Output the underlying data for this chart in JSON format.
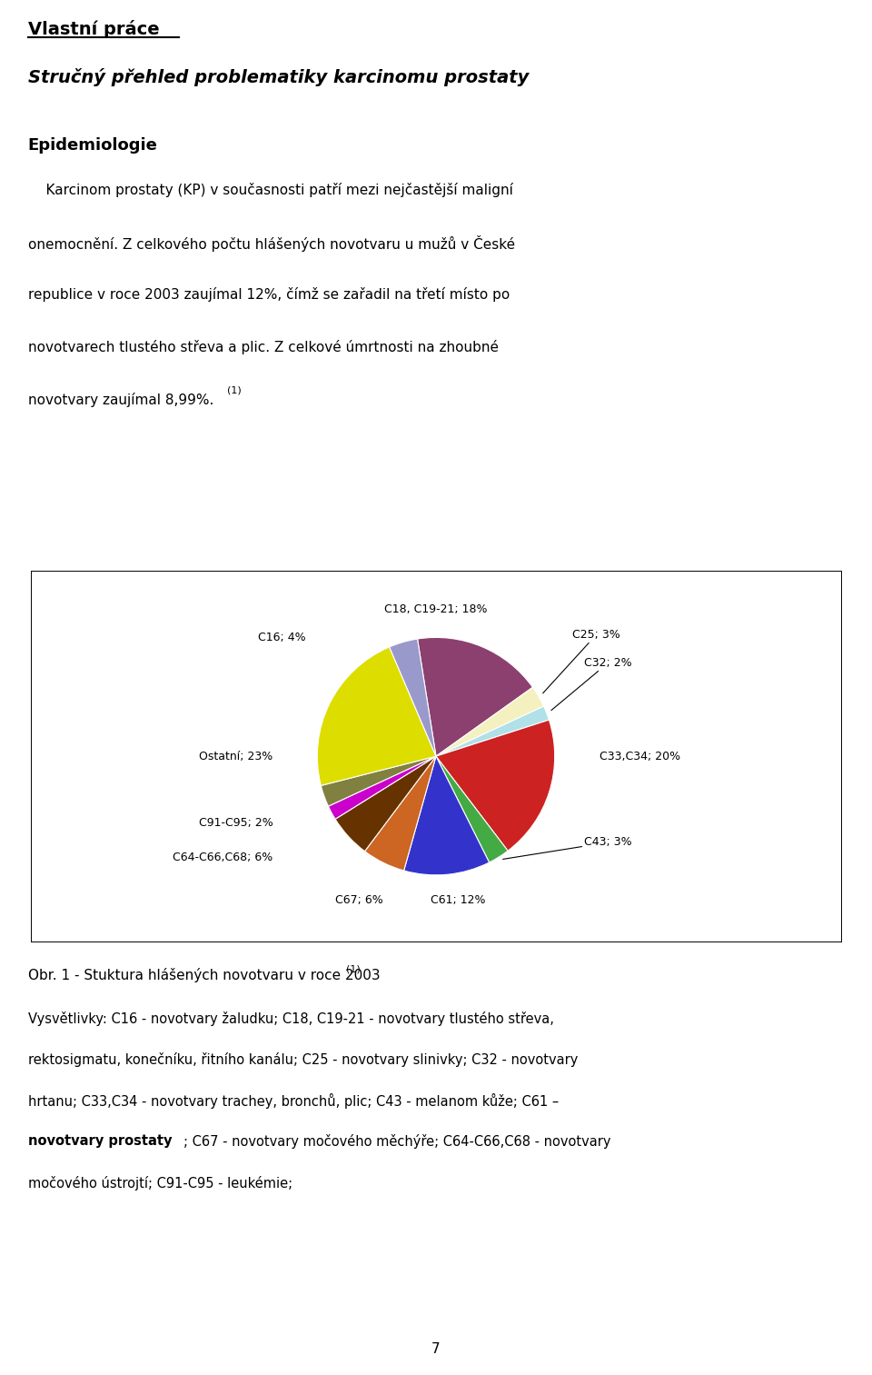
{
  "pie_sizes": [
    18,
    3,
    2,
    20,
    3,
    12,
    6,
    6,
    2,
    3,
    23,
    4
  ],
  "pie_colors": [
    "#8B4070",
    "#F5F0C0",
    "#B0E0E8",
    "#CC2222",
    "#44AA44",
    "#3333CC",
    "#CC6622",
    "#663300",
    "#CC00CC",
    "#808040",
    "#DDDD00",
    "#9999CC"
  ],
  "pie_label_texts": [
    "C18, C19-21; 18%",
    "C25; 3%",
    "C32; 2%",
    "C33,C34; 20%",
    "C43; 3%",
    "C61; 12%",
    "C67; 6%",
    "C64-C66,C68; 6%",
    "C91-C95; 2%",
    "",
    "Ostatní; 23%",
    "C16; 4%"
  ],
  "start_angle": 99,
  "title1": "Vlastní práce",
  "title2": "Stručný přehled problematiky karcinomu prostaty",
  "section": "Epidemiologie",
  "para_lines": [
    "    Karcinom prostaty (KP) v současnosti patří mezi nejčastější maligní",
    "onemocnění. Z celkového počtu hlášených novotvaru u mužů v České",
    "republice v roce 2003 zaujímal 12%, čímž se zařadil na třetí místo po",
    "novotvarech tlustého střeva a plic. Z celkové úmrtnosti na zhoubné",
    "novotvary zaujímal 8,99%."
  ],
  "caption": "Obr. 1 - Stuktura hlášených novotvaru v roce 2003",
  "caption_super": "(1)",
  "fn1": "Vysvětlivky: C16 - novotvary žaludku; C18, C19-21 - novotvary tlustého střeva,",
  "fn2": "rektosigmatu, konečníku, řitního kanálu; C25 - novotvary slinivky; C32 - novotvary",
  "fn3": "hrtanu; C33,C34 - novotvary trachey, bronchů, plic; C43 - melanom kůže; C61 –",
  "fn4_bold": "novotvary prostaty",
  "fn4_rest": "; C67 - novotvary močového měchýře; C64-C66,C68 - novotvary",
  "fn5": "močového ústrojtí; C91-C95 - leukémie;",
  "page": "7",
  "bg": "#FFFFFF"
}
